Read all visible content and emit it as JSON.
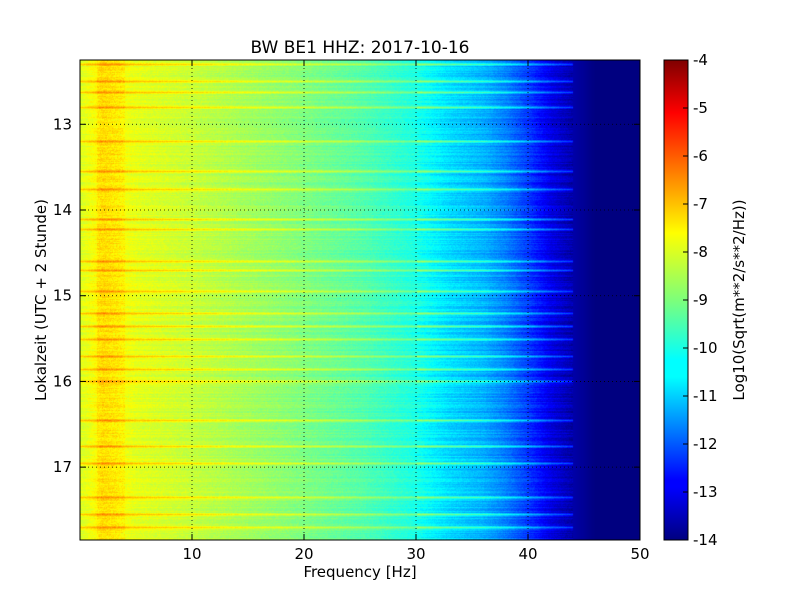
{
  "chart_data": {
    "type": "heatmap",
    "title": "BW BE1 HHZ: 2017-10-16",
    "xlabel": "Frequency [Hz]",
    "ylabel": "Lokalzeit (UTC + 2 Stunde)",
    "xlim": [
      0,
      50
    ],
    "ylim": [
      17.85,
      12.25
    ],
    "y_inverted": true,
    "x_ticks": [
      "10",
      "20",
      "30",
      "40",
      "50"
    ],
    "x_tick_values": [
      10,
      20,
      30,
      40,
      50
    ],
    "y_ticks": [
      "13",
      "14",
      "15",
      "16",
      "17"
    ],
    "y_tick_values": [
      13,
      14,
      15,
      16,
      17
    ],
    "grid": "dotted",
    "colormap": "jet",
    "colorbar": {
      "label": "Log10(Sqrt(m**2/s**2/Hz))",
      "range": [
        -14,
        -4
      ],
      "ticks": [
        "-4",
        "-5",
        "-6",
        "-7",
        "-8",
        "-9",
        "-10",
        "-11",
        "-12",
        "-13",
        "-14"
      ],
      "tick_values": [
        -4,
        -5,
        -6,
        -7,
        -8,
        -9,
        -10,
        -11,
        -12,
        -13,
        -14
      ]
    },
    "value_profile": {
      "frequency_hz": [
        0,
        2,
        5,
        10,
        20,
        25,
        30,
        33,
        36,
        38,
        40,
        42,
        44,
        46,
        50
      ],
      "log10_amplitude": [
        -8.1,
        -7.6,
        -8.0,
        -8.3,
        -9.0,
        -9.4,
        -10.0,
        -10.6,
        -11.0,
        -11.5,
        -12.2,
        -13.0,
        -13.6,
        -14.0,
        -14.0
      ]
    },
    "bright_bands_hours": [
      12.3,
      12.5,
      12.62,
      12.8,
      13.2,
      13.55,
      13.75,
      14.1,
      14.22,
      14.6,
      14.7,
      14.95,
      15.2,
      15.35,
      15.5,
      15.7,
      15.85,
      16.0,
      16.45,
      16.75,
      16.95,
      17.35,
      17.55,
      17.7
    ]
  }
}
